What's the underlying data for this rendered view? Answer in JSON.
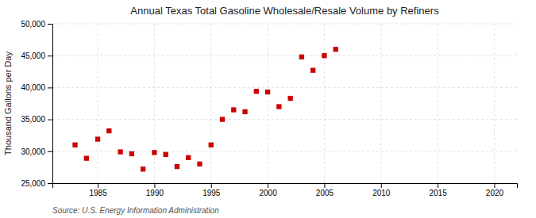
{
  "chart_data": {
    "type": "scatter",
    "title": "Annual Texas Total Gasoline Wholesale/Resale Volume by Refiners",
    "ylabel": "Thousand Gallons per Day",
    "source": "Source: U.S. Energy Information Administration",
    "x": [
      1983,
      1984,
      1985,
      1986,
      1987,
      1988,
      1989,
      1990,
      1991,
      1992,
      1993,
      1994,
      1995,
      1996,
      1997,
      1998,
      1999,
      2000,
      2001,
      2002,
      2003,
      2004,
      2005,
      2006
    ],
    "values": [
      31000,
      28900,
      31900,
      33200,
      29900,
      29600,
      27200,
      29800,
      29500,
      27600,
      29000,
      28000,
      31000,
      35000,
      36500,
      36200,
      39400,
      39300,
      37000,
      38300,
      44800,
      42700,
      45000,
      46000
    ],
    "color": "#cc0000",
    "marker": "square",
    "xlim": [
      1981,
      2022
    ],
    "ylim": [
      25000,
      50000
    ],
    "xticks": [
      1985,
      1990,
      1995,
      2000,
      2005,
      2010,
      2015,
      2020
    ],
    "yticks": [
      {
        "value": 25000,
        "label": "25,000"
      },
      {
        "value": 30000,
        "label": "30,000"
      },
      {
        "value": 35000,
        "label": "35,000"
      },
      {
        "value": 40000,
        "label": "40,000"
      },
      {
        "value": 45000,
        "label": "45,000"
      },
      {
        "value": 50000,
        "label": "50,000"
      }
    ],
    "grid": true
  }
}
